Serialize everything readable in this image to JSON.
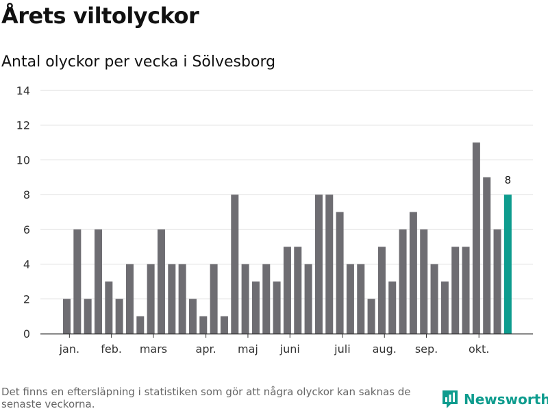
{
  "title": "Årets viltolyckor",
  "subtitle": "Antal olyckor per vecka i Sölvesborg",
  "footnote": "Det finns en eftersläpning i statistiken som gör att några olyckor kan saknas de senaste veckorna.",
  "brand": {
    "name": "Newsworthy",
    "icon": "newsworthy-logo-icon"
  },
  "colors": {
    "bar": "#6e6d72",
    "highlight": "#0e9c8e",
    "grid": "#dddddd",
    "axis": "#333333",
    "text": "#333333"
  },
  "chart_data": {
    "type": "bar",
    "title": "Årets viltolyckor",
    "subtitle": "Antal olyckor per vecka i Sölvesborg",
    "xlabel": "",
    "ylabel": "",
    "ylim": [
      0,
      14
    ],
    "yticks": [
      0,
      2,
      4,
      6,
      8,
      10,
      12,
      14
    ],
    "grid": true,
    "values": [
      2,
      6,
      2,
      6,
      3,
      2,
      4,
      1,
      4,
      6,
      4,
      4,
      2,
      1,
      4,
      1,
      8,
      4,
      3,
      4,
      3,
      5,
      5,
      4,
      8,
      8,
      7,
      4,
      4,
      2,
      5,
      3,
      6,
      7,
      6,
      4,
      3,
      5,
      5,
      11,
      9,
      6,
      8
    ],
    "highlight_index": 42,
    "highlight_label": "8",
    "month_labels": [
      {
        "label": "jan.",
        "bar_index": 0.25
      },
      {
        "label": "feb.",
        "bar_index": 4.25
      },
      {
        "label": "mars",
        "bar_index": 8.25
      },
      {
        "label": "apr.",
        "bar_index": 13.25
      },
      {
        "label": "maj",
        "bar_index": 17.25
      },
      {
        "label": "juni",
        "bar_index": 21.25
      },
      {
        "label": "juli",
        "bar_index": 26.25
      },
      {
        "label": "aug.",
        "bar_index": 30.25
      },
      {
        "label": "sep.",
        "bar_index": 34.25
      },
      {
        "label": "okt.",
        "bar_index": 39.25
      }
    ]
  }
}
